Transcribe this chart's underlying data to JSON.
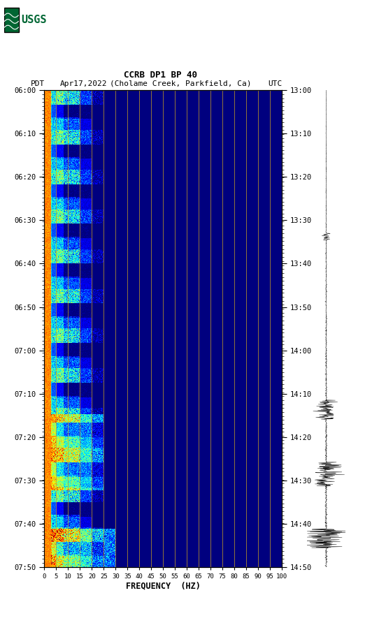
{
  "title_line1": "CCRB DP1 BP 40",
  "title_line2_pdt": "PDT",
  "title_line2_date": "Apr17,2022",
  "title_line2_loc": "(Cholame Creek, Parkfield, Ca)",
  "title_line2_utc": "UTC",
  "xlabel": "FREQUENCY  (HZ)",
  "freq_min": 0,
  "freq_max": 100,
  "freq_ticks": [
    0,
    5,
    10,
    15,
    20,
    25,
    30,
    35,
    40,
    45,
    50,
    55,
    60,
    65,
    70,
    75,
    80,
    85,
    90,
    95,
    100
  ],
  "left_time_labels": [
    "06:00",
    "06:10",
    "06:20",
    "06:30",
    "06:40",
    "06:50",
    "07:00",
    "07:10",
    "07:20",
    "07:30",
    "07:40",
    "07:50"
  ],
  "right_time_labels": [
    "13:00",
    "13:10",
    "13:20",
    "13:30",
    "13:40",
    "13:50",
    "14:00",
    "14:10",
    "14:20",
    "14:30",
    "14:40",
    "14:50"
  ],
  "vertical_line_freqs": [
    5,
    10,
    15,
    20,
    25,
    30,
    35,
    40,
    45,
    50,
    55,
    60,
    65,
    70,
    75,
    80,
    85,
    90,
    95
  ],
  "bg_color": "white",
  "usgs_logo_color": "#006633",
  "n_time_bins": 660,
  "n_freq_bins": 380,
  "seed": 12345
}
